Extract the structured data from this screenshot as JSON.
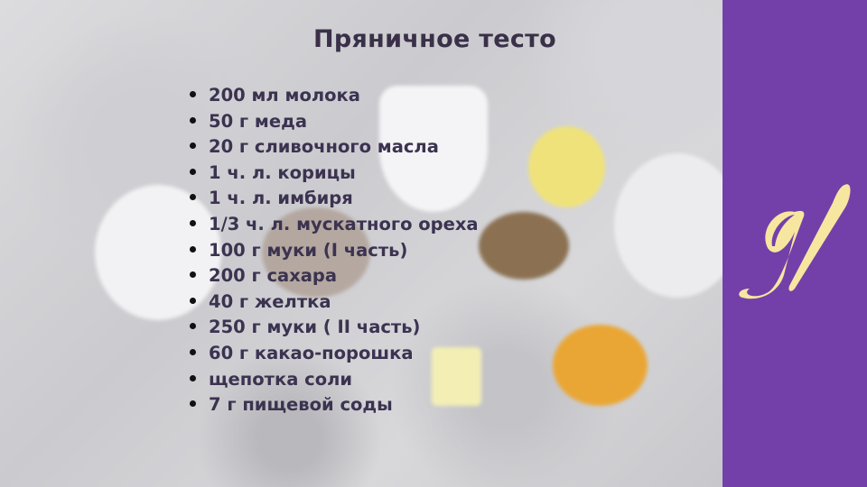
{
  "recipe": {
    "title": "Пряничное тесто",
    "ingredients": [
      "200 мл молока",
      "50 г меда",
      "20 г сливочного масла",
      "1 ч. л. корицы",
      "1 ч. л. имбиря",
      "1/3 ч. л. мускатного ореха",
      "100 г муки (I часть)",
      "200 г сахара",
      "40 г желтка",
      "250 г муки ( II часть)",
      "60 г какао-порошка",
      "щепотка соли",
      "7 г пищевой соды"
    ]
  },
  "brand": {
    "logo_text": "gl",
    "panel_color": "#7340aa",
    "logo_color": "#f7e6a0"
  }
}
